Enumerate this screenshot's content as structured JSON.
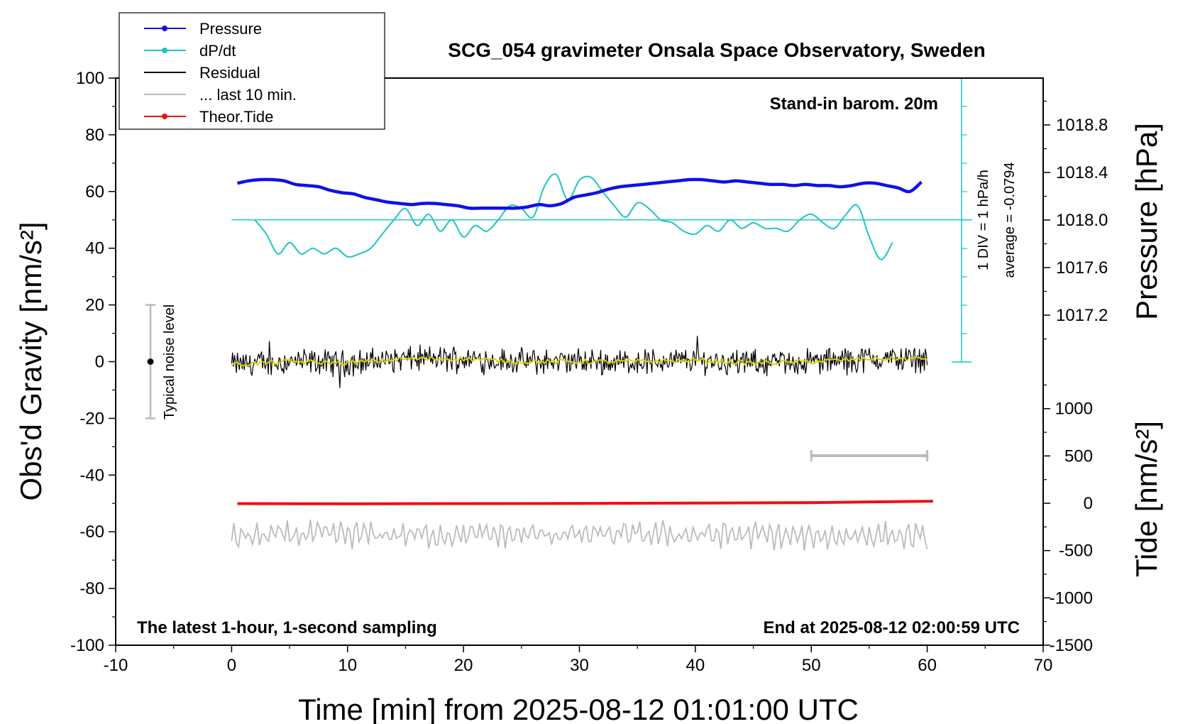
{
  "chart_data": {
    "type": "line",
    "title": "SCG_054 gravimeter Onsala Space Observatory, Sweden",
    "xlabel": "Time [min] from 2025-08-12 01:01:00 UTC",
    "ylabel_left": "Obs'd Gravity [nm/s²]",
    "ylabel_right_top": "Pressure [hPa]",
    "ylabel_right_bottom": "Tide [nm/s²]",
    "xlim": [
      -10,
      70
    ],
    "ylim": [
      -100,
      100
    ],
    "pressure_lim": [
      1016.9,
      1019.1
    ],
    "tide_lim": [
      -1500,
      1500
    ],
    "x_ticks": [
      "-10",
      "0",
      "10",
      "20",
      "30",
      "40",
      "50",
      "60",
      "70"
    ],
    "y_ticks": [
      "100",
      "80",
      "60",
      "40",
      "20",
      "0",
      "-20",
      "-40",
      "-60",
      "-80",
      "-100"
    ],
    "pressure_ticks": [
      "1018.8",
      "1018.4",
      "1018.0",
      "1017.6",
      "1017.2"
    ],
    "tide_ticks": [
      "1000",
      "500",
      "0",
      "-500",
      "-1000",
      "-1500"
    ],
    "legend_position": "top-left",
    "legend": [
      {
        "label": "Pressure",
        "color": "#1010e6",
        "marker": true
      },
      {
        "label": "dP/dt",
        "color": "#20c4c4",
        "marker": true
      },
      {
        "label": "Residual",
        "color": "#000000",
        "marker": false
      },
      {
        "label": "... last 10 min.",
        "color": "#bbbbbb",
        "marker": false
      },
      {
        "label": "Theor.Tide",
        "color": "#ee1010",
        "marker": true
      }
    ],
    "annotations": {
      "barometer": "Stand-in barom. 20m",
      "div_scale": "1 DIV = 1 hPa/h",
      "average": "average = -0.0794",
      "noise": "Typical noise level",
      "latest": "The latest 1-hour, 1-second sampling",
      "end": "End at 2025-08-12 02:00:59 UTC"
    },
    "series": [
      {
        "name": "Pressure",
        "axis": "pressure",
        "color": "#1010e6",
        "x": [
          0.5,
          1.5,
          2.5,
          3.5,
          4.5,
          5.5,
          6.5,
          7.5,
          8.5,
          9.5,
          10.5,
          11.5,
          12.5,
          13.5,
          14.5,
          15.5,
          16.5,
          17.5,
          18.5,
          19.5,
          20.5,
          21.5,
          22.5,
          23.5,
          24.5,
          25.5,
          26.5,
          27.5,
          28.5,
          29.5,
          30.5,
          31.5,
          32.5,
          33.5,
          34.5,
          35.5,
          36.5,
          37.5,
          38.5,
          39.5,
          40.5,
          41.5,
          42.5,
          43.5,
          44.5,
          45.5,
          46.5,
          47.5,
          48.5,
          49.5,
          50.5,
          51.5,
          52.5,
          53.5,
          54.5,
          55.5,
          56.5,
          57.5,
          58.5,
          59.5
        ],
        "y": [
          1018.31,
          1018.33,
          1018.34,
          1018.34,
          1018.33,
          1018.3,
          1018.29,
          1018.28,
          1018.25,
          1018.23,
          1018.22,
          1018.19,
          1018.17,
          1018.15,
          1018.14,
          1018.13,
          1018.14,
          1018.14,
          1018.13,
          1018.12,
          1018.1,
          1018.1,
          1018.1,
          1018.1,
          1018.1,
          1018.11,
          1018.13,
          1018.12,
          1018.14,
          1018.19,
          1018.21,
          1018.23,
          1018.26,
          1018.28,
          1018.29,
          1018.3,
          1018.31,
          1018.32,
          1018.33,
          1018.34,
          1018.34,
          1018.33,
          1018.32,
          1018.33,
          1018.32,
          1018.31,
          1018.3,
          1018.3,
          1018.29,
          1018.3,
          1018.29,
          1018.29,
          1018.28,
          1018.29,
          1018.31,
          1018.31,
          1018.29,
          1018.27,
          1018.24,
          1018.32
        ]
      },
      {
        "name": "dP/dt",
        "axis": "gravity",
        "color": "#20c4c4",
        "x": [
          2,
          3,
          4,
          5,
          6,
          7,
          8,
          9,
          10,
          11,
          12,
          13,
          14,
          15,
          16,
          17,
          18,
          19,
          20,
          21,
          22,
          23,
          24,
          25,
          26,
          27,
          28,
          29,
          30,
          31,
          32,
          33,
          34,
          35,
          36,
          37,
          38,
          39,
          40,
          41,
          42,
          43,
          44,
          45,
          46,
          47,
          48,
          49,
          50,
          51,
          52,
          53,
          54,
          55,
          56,
          57
        ],
        "y": [
          50,
          45,
          38,
          42,
          38,
          40,
          38,
          40,
          37,
          38,
          40,
          45,
          50,
          54,
          48,
          52,
          46,
          50,
          44,
          48,
          46,
          50,
          55,
          54,
          51,
          62,
          66,
          57,
          64,
          65,
          60,
          55,
          51,
          56,
          54,
          50,
          49,
          46,
          45,
          48,
          46,
          50,
          47,
          49,
          47,
          47,
          46,
          50,
          52,
          49,
          47,
          52,
          55,
          44,
          36,
          42
        ]
      },
      {
        "name": "Residual",
        "axis": "gravity",
        "color": "#000000",
        "x": [
          0,
          5,
          10,
          15,
          20,
          25,
          30,
          35,
          40,
          45,
          50,
          55,
          60
        ],
        "y": [
          -1,
          0,
          -0.5,
          1,
          1,
          0,
          0,
          0,
          0.5,
          -0.5,
          0,
          1,
          1
        ]
      },
      {
        "name": "... last 10 min.",
        "axis": "gravity",
        "color": "#bbbbbb",
        "x": [
          0,
          5,
          10,
          15,
          20,
          25,
          30,
          35,
          40,
          45,
          50,
          55,
          60
        ],
        "y": [
          -62,
          -61,
          -61,
          -61,
          -61,
          -61,
          -61,
          -61,
          -61,
          -61,
          -62,
          -61,
          -62
        ]
      },
      {
        "name": "Theor.Tide",
        "axis": "tide",
        "color": "#ee1010",
        "x": [
          0.5,
          10,
          20,
          30,
          40,
          50,
          60.5
        ],
        "y": [
          -4,
          -6,
          -4,
          -2,
          2,
          7,
          22
        ]
      }
    ],
    "window_bar": [
      50,
      60
    ]
  }
}
